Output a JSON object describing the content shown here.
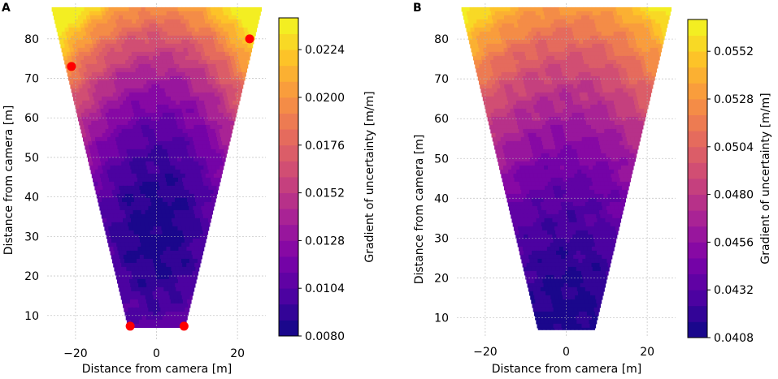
{
  "chart_data": [
    {
      "panel_label": "A",
      "type": "heatmap",
      "xlabel": "Distance from camera [m]",
      "ylabel": "Distance from camera [m]",
      "xlim": [
        -27,
        27
      ],
      "ylim": [
        4,
        89
      ],
      "xticks": [
        -20,
        0,
        20
      ],
      "yticks": [
        10,
        20,
        30,
        40,
        50,
        60,
        70,
        80
      ],
      "grid": true,
      "field_of_view": {
        "near_distance": 7,
        "far_distance": 88,
        "near_half_width": 7,
        "far_half_width": 26
      },
      "field": {
        "vmin": 0.008,
        "vmax": 0.024,
        "center": [
          0,
          32
        ],
        "center_value": 0.0084,
        "coef_x": 1.15e-05,
        "coef_y": 3.6e-06,
        "noise": 0.0003
      },
      "markers": [
        {
          "x": -6.5,
          "y": 7.3
        },
        {
          "x": 6.8,
          "y": 7.3
        },
        {
          "x": -21,
          "y": 73
        },
        {
          "x": 23,
          "y": 80
        }
      ],
      "marker_color": "#ff0000",
      "colorbar": {
        "label": "Gradient of uncertainty [m/m]",
        "vmin": 0.008,
        "vmax": 0.024,
        "ticks": [
          "0.0080",
          "0.0104",
          "0.0128",
          "0.0152",
          "0.0176",
          "0.0200",
          "0.0224"
        ]
      }
    },
    {
      "panel_label": "B",
      "type": "heatmap",
      "xlabel": "Distance from camera [m]",
      "ylabel": "Distance from camera [m]",
      "xlim": [
        -27,
        27
      ],
      "ylim": [
        5,
        89
      ],
      "xticks": [
        -20,
        0,
        20
      ],
      "yticks": [
        10,
        20,
        30,
        40,
        50,
        60,
        70,
        80
      ],
      "grid": true,
      "field_of_view": {
        "near_distance": 7,
        "far_distance": 88,
        "near_half_width": 7,
        "far_half_width": 26
      },
      "field": {
        "vmin": 0.0408,
        "vmax": 0.0568,
        "center": [
          0,
          5
        ],
        "center_value": 0.0412,
        "coef_x": 6.5e-06,
        "coef_y": 1.7e-06,
        "noise": 0.0003
      },
      "markers": [],
      "colorbar": {
        "label": "Gradient of uncertainty [m/m]",
        "vmin": 0.0408,
        "vmax": 0.0568,
        "ticks": [
          "0.0408",
          "0.0432",
          "0.0456",
          "0.0480",
          "0.0504",
          "0.0528",
          "0.0552"
        ]
      }
    }
  ]
}
